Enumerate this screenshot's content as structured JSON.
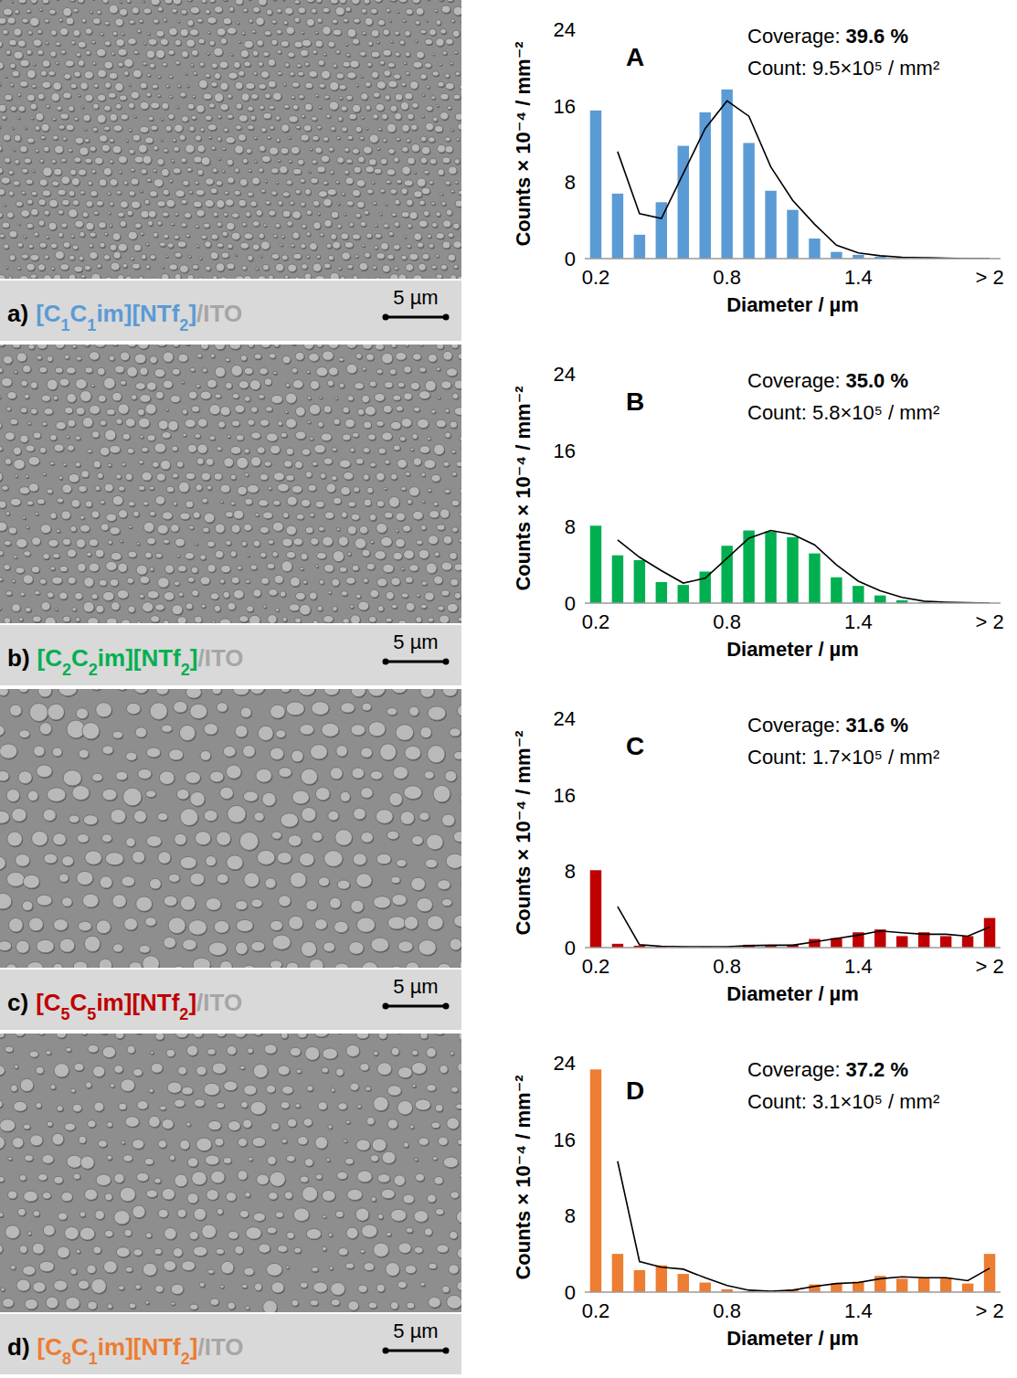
{
  "chart_data": [
    {
      "type": "bar",
      "panel": "A",
      "coverage_label": "Coverage:",
      "coverage": "39.6 %",
      "count": "Count: 9.5×10⁵ / mm²",
      "x_label": "Diameter / µm",
      "y_label": "Counts × 10⁻⁴ / mm⁻²",
      "categories": [
        "0.2",
        null,
        null,
        null,
        null,
        null,
        "0.8",
        null,
        null,
        null,
        null,
        null,
        "1.4",
        null,
        null,
        null,
        null,
        null,
        "> 2"
      ],
      "ylim": [
        0,
        24
      ],
      "yticks": [
        0,
        8,
        16,
        24
      ],
      "grid": false,
      "series": [
        {
          "type": "bar",
          "color": "#5b9bd5",
          "values": [
            15.5,
            6.8,
            2.5,
            5.9,
            11.8,
            15.3,
            17.7,
            12.1,
            7.1,
            5.1,
            2.1,
            0.7,
            0.4,
            0.2,
            0.1,
            0.05,
            0,
            0,
            0
          ]
        },
        {
          "type": "line",
          "color": "#000000",
          "values": [
            null,
            11.2,
            4.7,
            4.2,
            8.9,
            13.6,
            16.5,
            14.9,
            9.6,
            6.1,
            3.6,
            1.4,
            0.6,
            0.3,
            0.15,
            0.1,
            0.05,
            0,
            0
          ]
        }
      ],
      "image": {
        "letter": "a)",
        "compound": "[C1C1im][NTf2]",
        "substrate": "/ITO",
        "scale_bar": "5 µm"
      }
    },
    {
      "type": "bar",
      "panel": "B",
      "coverage_label": "Coverage:",
      "coverage": "35.0 %",
      "count": "Count: 5.8×10⁵ / mm²",
      "x_label": "Diameter / µm",
      "y_label": "Counts × 10⁻⁴ / mm⁻²",
      "categories": [
        "0.2",
        null,
        null,
        null,
        null,
        null,
        "0.8",
        null,
        null,
        null,
        null,
        null,
        "1.4",
        null,
        null,
        null,
        null,
        null,
        "> 2"
      ],
      "ylim": [
        0,
        24
      ],
      "yticks": [
        0,
        8,
        16,
        24
      ],
      "grid": false,
      "series": [
        {
          "type": "bar",
          "color": "#00b050",
          "values": [
            8.1,
            5.0,
            4.5,
            2.2,
            1.9,
            3.3,
            6.0,
            7.6,
            7.5,
            6.9,
            5.2,
            2.7,
            1.8,
            0.8,
            0.3,
            0.1,
            0.05,
            0,
            0
          ]
        },
        {
          "type": "line",
          "color": "#000000",
          "values": [
            null,
            6.6,
            4.8,
            3.4,
            2.1,
            2.6,
            4.7,
            6.8,
            7.6,
            7.2,
            6.1,
            4.0,
            2.3,
            1.3,
            0.6,
            0.2,
            0.1,
            0.05,
            0
          ]
        }
      ],
      "image": {
        "letter": "b)",
        "compound": "[C2C2im][NTf2]",
        "substrate": "/ITO",
        "scale_bar": "5 µm"
      }
    },
    {
      "type": "bar",
      "panel": "C",
      "coverage_label": "Coverage:",
      "coverage": "31.6 %",
      "count": "Count: 1.7×10⁵ / mm²",
      "x_label": "Diameter / µm",
      "y_label": "Counts × 10⁻⁴ / mm⁻²",
      "categories": [
        "0.2",
        null,
        null,
        null,
        null,
        null,
        "0.8",
        null,
        null,
        null,
        null,
        null,
        "1.4",
        null,
        null,
        null,
        null,
        null,
        "> 2"
      ],
      "ylim": [
        0,
        24
      ],
      "yticks": [
        0,
        8,
        16,
        24
      ],
      "grid": false,
      "series": [
        {
          "type": "bar",
          "color": "#c00000",
          "values": [
            8.1,
            0.4,
            0.2,
            0.1,
            0.1,
            0.1,
            0.1,
            0.3,
            0.2,
            0.3,
            0.9,
            1.0,
            1.6,
            1.9,
            1.2,
            1.6,
            1.2,
            1.2,
            3.1
          ]
        },
        {
          "type": "line",
          "color": "#000000",
          "values": [
            null,
            4.3,
            0.3,
            0.15,
            0.1,
            0.1,
            0.1,
            0.2,
            0.25,
            0.25,
            0.6,
            0.95,
            1.3,
            1.75,
            1.55,
            1.4,
            1.4,
            1.2,
            2.15
          ]
        }
      ],
      "image": {
        "letter": "c)",
        "compound": "[C5C5im][NTf2]",
        "substrate": "/ITO",
        "scale_bar": "5 µm"
      }
    },
    {
      "type": "bar",
      "panel": "D",
      "coverage_label": "Coverage:",
      "coverage": "37.2 %",
      "count": "Count: 3.1×10⁵ / mm²",
      "x_label": "Diameter / µm",
      "y_label": "Counts × 10⁻⁴ / mm⁻²",
      "categories": [
        "0.2",
        null,
        null,
        null,
        null,
        null,
        "0.8",
        null,
        null,
        null,
        null,
        null,
        "1.4",
        null,
        null,
        null,
        null,
        null,
        "> 2"
      ],
      "ylim": [
        0,
        24
      ],
      "yticks": [
        0,
        8,
        16,
        24
      ],
      "grid": false,
      "series": [
        {
          "type": "bar",
          "color": "#ed7d31",
          "values": [
            23.3,
            4.0,
            2.3,
            2.8,
            1.9,
            1.0,
            0.3,
            0.1,
            0.1,
            0.3,
            0.8,
            0.9,
            1.1,
            1.7,
            1.4,
            1.5,
            1.5,
            0.9,
            4.0
          ]
        },
        {
          "type": "line",
          "color": "#000000",
          "values": [
            null,
            13.7,
            3.2,
            2.6,
            2.4,
            1.5,
            0.7,
            0.2,
            0.1,
            0.2,
            0.6,
            0.9,
            1.0,
            1.4,
            1.6,
            1.5,
            1.5,
            1.2,
            2.5
          ]
        }
      ],
      "image": {
        "letter": "d)",
        "compound": "[C8C1im][NTf2]",
        "substrate": "/ITO",
        "scale_bar": "5 µm"
      }
    }
  ]
}
